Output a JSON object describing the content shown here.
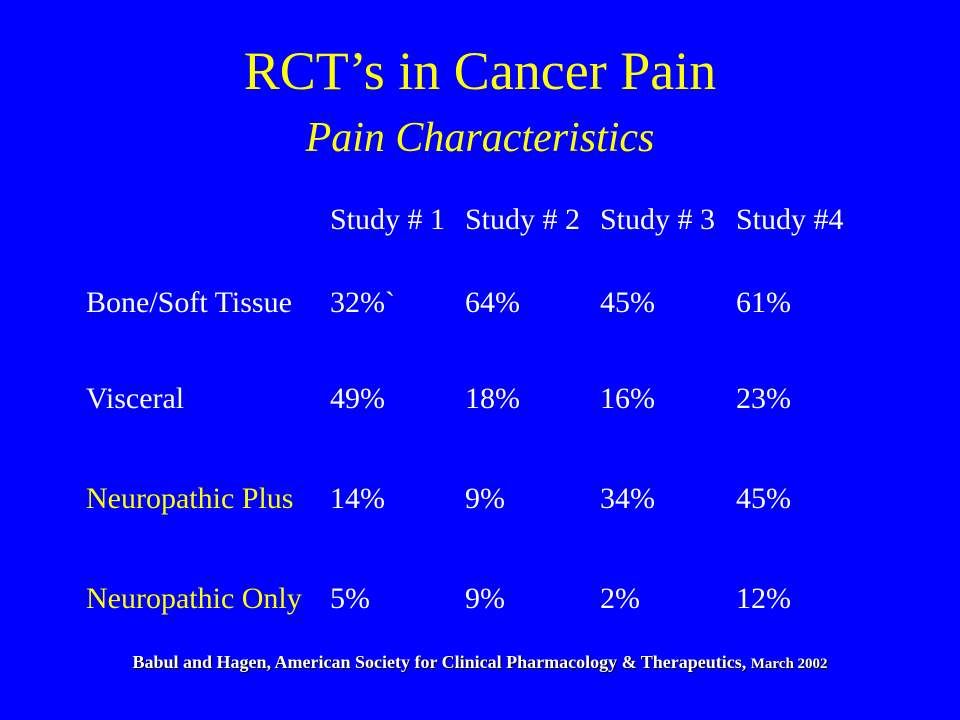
{
  "slide": {
    "title": "RCT’s in Cancer Pain",
    "subtitle": "Pain Characteristics",
    "colors": {
      "background": "#0000ff",
      "title": "#ffff00",
      "text": "#ffffff",
      "neuropathic_labels": "#ffff00"
    }
  },
  "table": {
    "columns": [
      "Study # 1",
      "Study # 2",
      "Study # 3",
      "Study #4"
    ],
    "rows": [
      {
        "label": "Bone/Soft Tissue",
        "values": [
          "32%`",
          "64%",
          "45%",
          "61%"
        ]
      },
      {
        "label": "Visceral",
        "values": [
          "49%",
          "18%",
          "16%",
          "23%"
        ]
      },
      {
        "label": "Neuropathic Plus",
        "values": [
          "14%",
          "9%",
          "34%",
          "45%"
        ]
      },
      {
        "label": "Neuropathic Only",
        "values": [
          "5%",
          "9%",
          "2%",
          "12%"
        ]
      }
    ]
  },
  "citation": {
    "text": "Babul and Hagen, American Society for Clinical Pharmacology & Therapeutics,",
    "date": "March 2002"
  }
}
